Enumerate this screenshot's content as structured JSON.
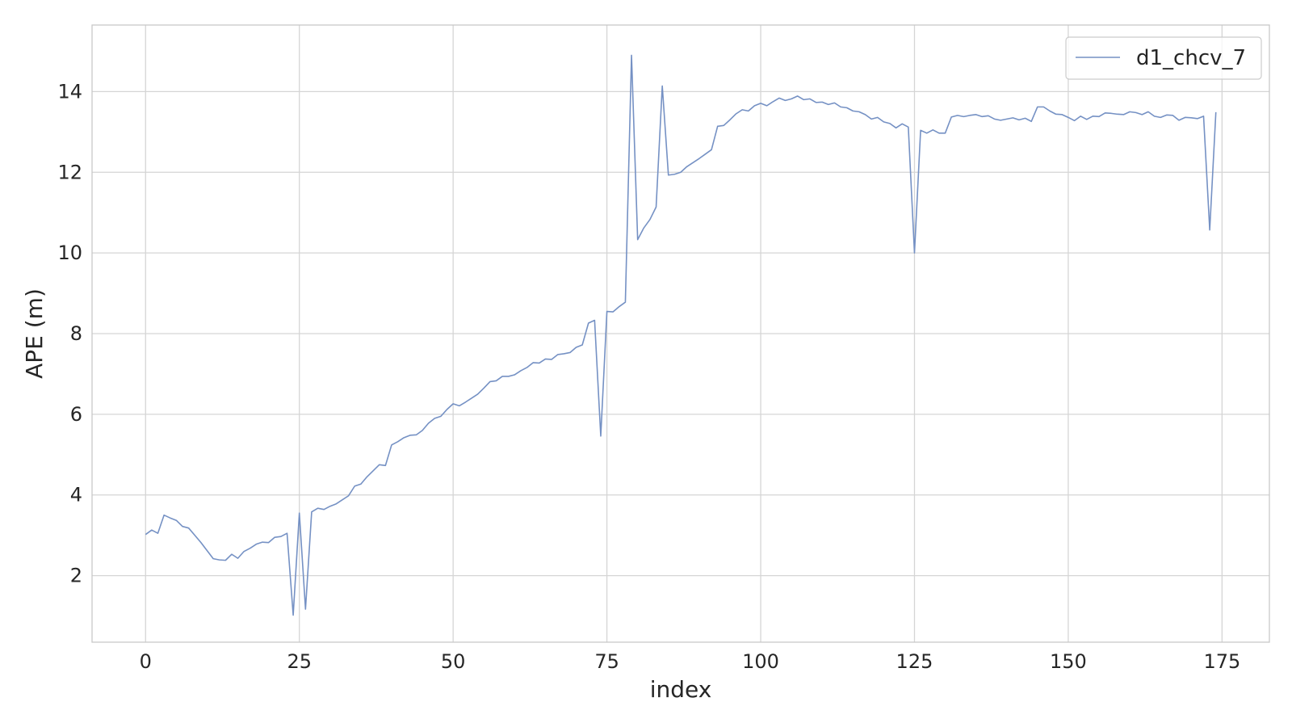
{
  "chart_data": {
    "type": "line",
    "xlabel": "index",
    "ylabel": "APE (m)",
    "xlim": [
      -8.7,
      182.7
    ],
    "ylim": [
      0.35,
      15.65
    ],
    "xticks": [
      0,
      25,
      50,
      75,
      100,
      125,
      150,
      175
    ],
    "yticks": [
      2,
      4,
      6,
      8,
      10,
      12,
      14
    ],
    "grid": true,
    "legend_position": "top-right",
    "colors": {
      "line": "#7591c4",
      "grid": "#d5d5d5",
      "frame": "#c8c8c8"
    },
    "series": [
      {
        "name": "d1_chcv_7",
        "x": [
          0,
          1,
          2,
          3,
          4,
          5,
          6,
          7,
          8,
          9,
          10,
          11,
          12,
          13,
          14,
          15,
          16,
          17,
          18,
          19,
          20,
          21,
          22,
          23,
          24,
          25,
          26,
          27,
          28,
          29,
          30,
          31,
          32,
          33,
          34,
          35,
          36,
          37,
          38,
          39,
          40,
          41,
          42,
          43,
          44,
          45,
          46,
          47,
          48,
          49,
          50,
          51,
          52,
          53,
          54,
          55,
          56,
          57,
          58,
          59,
          60,
          61,
          62,
          63,
          64,
          65,
          66,
          67,
          68,
          69,
          70,
          71,
          72,
          73,
          74,
          75,
          76,
          77,
          78,
          79,
          80,
          81,
          82,
          83,
          84,
          85,
          86,
          87,
          88,
          89,
          90,
          91,
          92,
          93,
          94,
          95,
          96,
          97,
          98,
          99,
          100,
          101,
          102,
          103,
          104,
          105,
          106,
          107,
          108,
          109,
          110,
          111,
          112,
          113,
          114,
          115,
          116,
          117,
          118,
          119,
          120,
          121,
          122,
          123,
          124,
          125,
          126,
          127,
          128,
          129,
          130,
          131,
          132,
          133,
          134,
          135,
          136,
          137,
          138,
          139,
          140,
          141,
          142,
          143,
          144,
          145,
          146,
          147,
          148,
          149,
          150,
          151,
          152,
          153,
          154,
          155,
          156,
          157,
          158,
          159,
          160,
          161,
          162,
          163,
          164,
          165,
          166,
          167,
          168,
          169,
          170,
          171,
          172,
          173,
          174
        ],
        "values": [
          3.02,
          3.13,
          3.05,
          3.5,
          3.43,
          3.37,
          3.22,
          3.18,
          3.0,
          2.82,
          2.62,
          2.42,
          2.39,
          2.38,
          2.53,
          2.43,
          2.6,
          2.68,
          2.78,
          2.83,
          2.82,
          2.95,
          2.97,
          3.05,
          1.02,
          3.55,
          1.17,
          3.58,
          3.67,
          3.64,
          3.72,
          3.78,
          3.88,
          3.98,
          4.22,
          4.27,
          4.45,
          4.6,
          4.75,
          4.73,
          5.24,
          5.32,
          5.42,
          5.48,
          5.49,
          5.6,
          5.78,
          5.9,
          5.95,
          6.12,
          6.26,
          6.21,
          6.3,
          6.4,
          6.5,
          6.65,
          6.81,
          6.83,
          6.94,
          6.94,
          6.98,
          7.08,
          7.16,
          7.28,
          7.27,
          7.37,
          7.36,
          7.48,
          7.5,
          7.53,
          7.66,
          7.72,
          8.26,
          8.33,
          5.46,
          8.55,
          8.54,
          8.67,
          8.78,
          14.9,
          10.33,
          10.62,
          10.83,
          11.14,
          14.14,
          11.93,
          11.95,
          12.0,
          12.14,
          12.24,
          12.34,
          12.45,
          12.56,
          13.14,
          13.16,
          13.3,
          13.45,
          13.55,
          13.52,
          13.65,
          13.71,
          13.65,
          13.75,
          13.84,
          13.78,
          13.82,
          13.89,
          13.8,
          13.82,
          13.73,
          13.74,
          13.68,
          13.72,
          13.62,
          13.6,
          13.52,
          13.5,
          13.43,
          13.32,
          13.36,
          13.25,
          13.21,
          13.1,
          13.2,
          13.12,
          10.0,
          13.04,
          12.97,
          13.05,
          12.97,
          12.97,
          13.37,
          13.41,
          13.38,
          13.41,
          13.43,
          13.38,
          13.4,
          13.32,
          13.29,
          13.32,
          13.35,
          13.3,
          13.34,
          13.26,
          13.62,
          13.62,
          13.52,
          13.44,
          13.43,
          13.36,
          13.28,
          13.39,
          13.31,
          13.39,
          13.38,
          13.47,
          13.46,
          13.44,
          13.43,
          13.5,
          13.48,
          13.43,
          13.5,
          13.39,
          13.36,
          13.42,
          13.41,
          13.29,
          13.36,
          13.35,
          13.33,
          13.39,
          10.57,
          13.49
        ]
      }
    ]
  }
}
